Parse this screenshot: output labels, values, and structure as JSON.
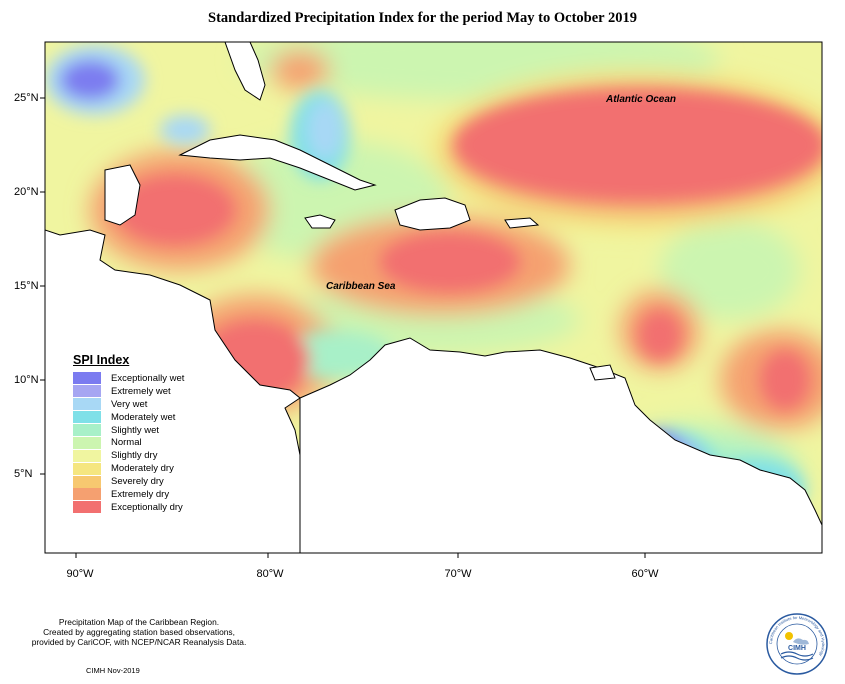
{
  "title": "Standardized Precipitation Index for the period May to October 2019",
  "map": {
    "lat_ticks": [
      "25°N",
      "20°N",
      "15°N",
      "10°N",
      "5°N"
    ],
    "lon_ticks": [
      "90°W",
      "80°W",
      "70°W",
      "60°W"
    ],
    "labels": {
      "atlantic": "Atlantic Ocean",
      "caribbean": "Caribbean Sea"
    }
  },
  "legend": {
    "title": "SPI Index",
    "items": [
      {
        "label": "Exceptionally wet",
        "color": "#7b7bf0"
      },
      {
        "label": "Extremely wet",
        "color": "#a6a6f2"
      },
      {
        "label": "Very wet",
        "color": "#a8d8f5"
      },
      {
        "label": "Moderately wet",
        "color": "#7fe0e8"
      },
      {
        "label": "Slightly wet",
        "color": "#a8f0c8"
      },
      {
        "label": "Normal",
        "color": "#ccf5b0"
      },
      {
        "label": "Slightly dry",
        "color": "#f0f5a0"
      },
      {
        "label": "Moderately dry",
        "color": "#f5e680"
      },
      {
        "label": "Severely dry",
        "color": "#f7c870"
      },
      {
        "label": "Extremely dry",
        "color": "#f5a070"
      },
      {
        "label": "Exceptionally dry",
        "color": "#f27070"
      }
    ]
  },
  "footnote": {
    "line1": "Precipitation Map of the Caribbean Region.",
    "line2": "Created by aggregating station based observations,",
    "line3": "provided by CariCOF, with NCEP/NCAR Reanalysis Data."
  },
  "credit": "CIMH Nov-2019",
  "logo": {
    "text": "CIMH",
    "ring_text": "Caribbean Institute for Meteorology and Hydrology"
  }
}
